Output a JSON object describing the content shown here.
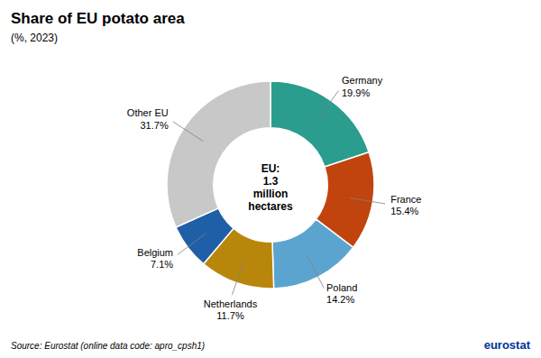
{
  "chart_data": {
    "type": "donut",
    "title": "Share of EU potato area",
    "subtitle": "(%, 2023)",
    "categories": [
      "Germany",
      "France",
      "Poland",
      "Netherlands",
      "Belgium",
      "Other EU"
    ],
    "values": [
      19.9,
      15.4,
      14.2,
      11.7,
      7.1,
      31.7
    ],
    "value_labels": [
      "19.9%",
      "15.4%",
      "14.2%",
      "11.7%",
      "7.1%",
      "31.7%"
    ],
    "colors": [
      "#2a9d8f",
      "#c1440e",
      "#5ba4cf",
      "#b8860b",
      "#1e5fa8",
      "#c8c8c8"
    ],
    "data_labels": true,
    "annotations": [
      {
        "text": "EU:\n1.3\nmillion\nhectares"
      },
      {
        "text": "Source: Eurostat (online data code: apro_cpsh1)"
      },
      {
        "text": "eurostat",
        "color": "#003399"
      }
    ]
  }
}
